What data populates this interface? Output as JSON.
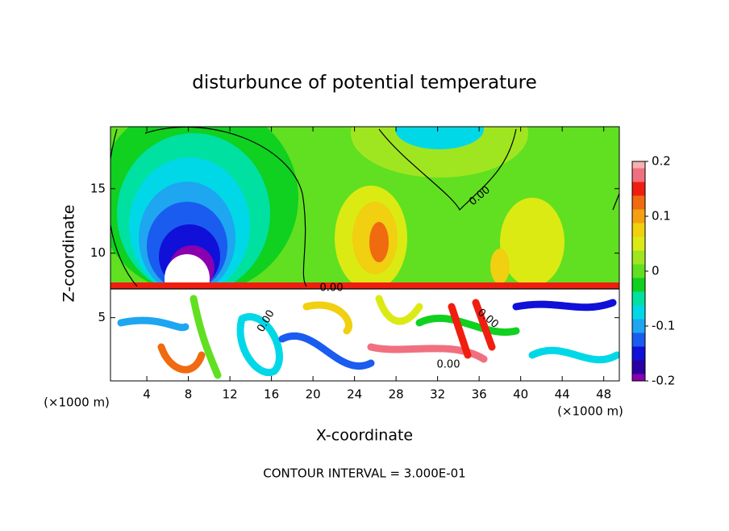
{
  "chart_data": {
    "type": "contour",
    "title": "disturbunce of potential temperature",
    "x_label": "X-coordinate",
    "y_label": "Z-coordinate",
    "x_unit_label": "(×1000 m)",
    "footer": "CONTOUR INTERVAL = 3.000E-01",
    "contour_label": "0.00",
    "xlim": [
      0.5,
      49.5
    ],
    "xticks": [
      4,
      8,
      12,
      16,
      20,
      24,
      28,
      32,
      36,
      40,
      44,
      48
    ],
    "ylim": [
      0.1,
      19.8
    ],
    "yticks": [
      5,
      10,
      15
    ],
    "colorbar": {
      "lim": [
        -0.2,
        0.2
      ],
      "ticks": [
        -0.2,
        -0.1,
        0,
        0.1,
        0.2
      ],
      "levels": [
        -0.2,
        -0.175,
        -0.15,
        -0.125,
        -0.1,
        -0.075,
        -0.05,
        -0.025,
        0,
        0.025,
        0.05,
        0.075,
        0.1,
        0.125,
        0.15,
        0.175,
        0.2
      ],
      "colors": [
        "#8a00b0",
        "#2a00a0",
        "#1010d8",
        "#1a5cf0",
        "#1ea6f0",
        "#00d8e8",
        "#00e0a0",
        "#10d020",
        "#60e020",
        "#a0e620",
        "#dcea14",
        "#f0d010",
        "#f4a010",
        "#f06a10",
        "#f01e10",
        "#f07080",
        "#f8b0b0"
      ]
    }
  }
}
